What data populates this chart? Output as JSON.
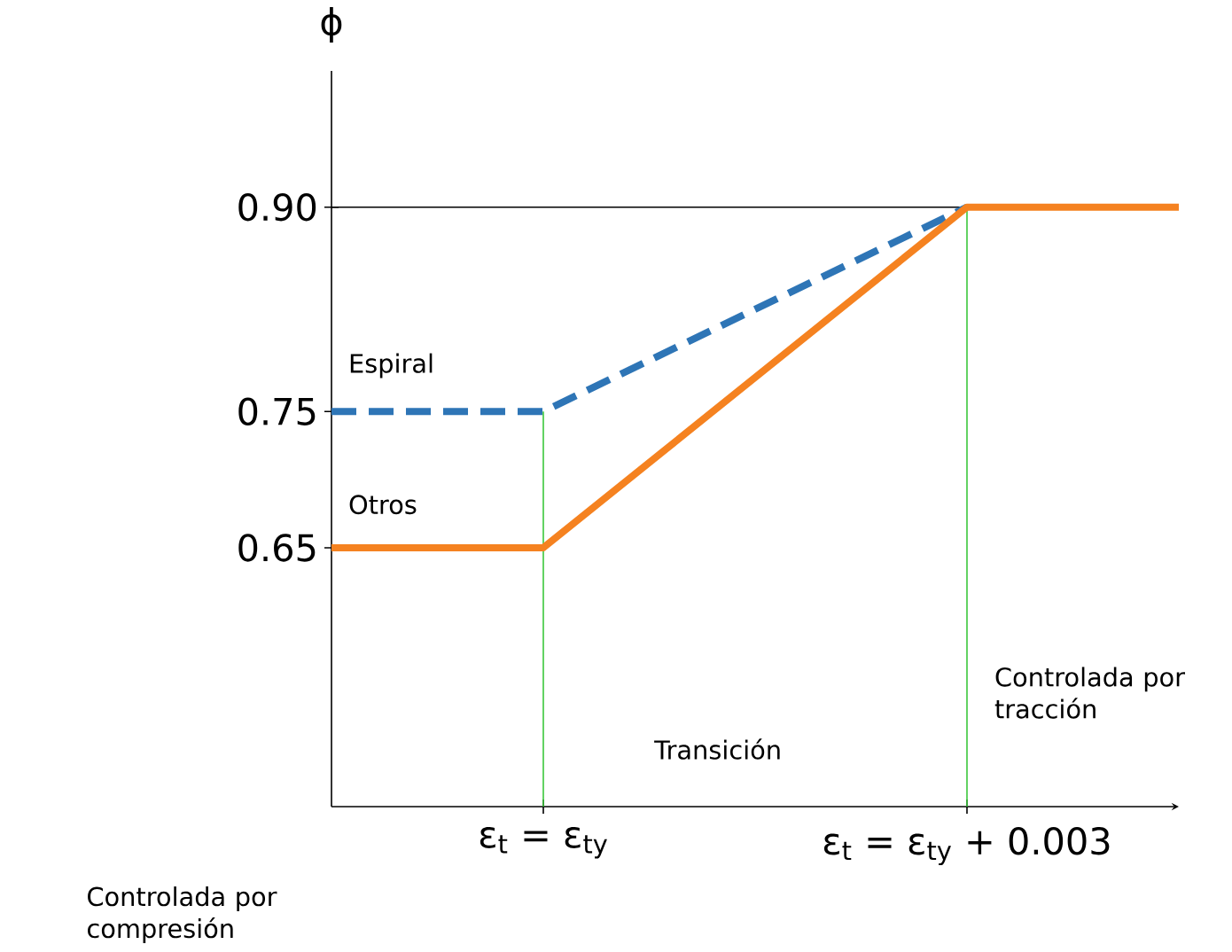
{
  "chart_data": {
    "type": "line",
    "ylabel": "ϕ",
    "categories": [
      null,
      "ε$_{t}$ = ε$_{ty}$",
      null,
      "ε$_{t}$ = ε$_{ty}$ + 0.003",
      null
    ],
    "ylim": [
      0.46,
      1.0
    ],
    "yticks": [
      0.65,
      0.75,
      {
        "value": 0.9,
        "label": "0.90"
      }
    ],
    "series": [
      {
        "name": "Espiral",
        "color": "#2e75b6",
        "line_style": "dashed",
        "values": [
          0.75,
          0.75,
          0.825,
          0.9,
          null
        ]
      },
      {
        "name": "Otros",
        "color": "#f58220",
        "line_style": "solid",
        "values": [
          0.65,
          0.65,
          0.775,
          0.9,
          0.9
        ]
      }
    ],
    "ref_lines": [
      {
        "axis": "y",
        "value": 0.9,
        "color": "#000000"
      },
      {
        "axis": "x",
        "value": "ε$_{t}$ = ε$_{ty}$",
        "color": "#3cc83c"
      },
      {
        "axis": "x",
        "value": "ε$_{t}$ = ε$_{ty}$ + 0.003",
        "color": "#3cc83c"
      }
    ],
    "annotations": [
      "Controlada por compresión",
      "Transición",
      "Controlada por tracción"
    ]
  }
}
